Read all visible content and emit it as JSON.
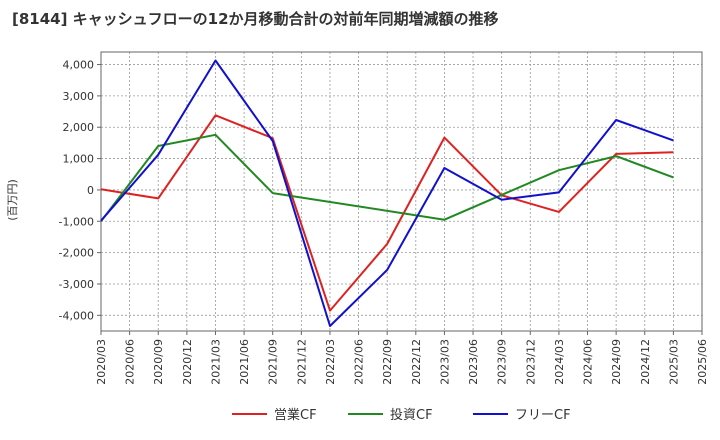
{
  "chart_data": {
    "type": "line",
    "title": "[8144]  キャッシュフローの12か月移動合計の対前年同期増減額の推移",
    "ylabel": "(百万円)",
    "xlabel": "",
    "ylim": [
      -4500,
      4400
    ],
    "yticks": [
      4000,
      3000,
      2000,
      1000,
      0,
      -1000,
      -2000,
      -3000,
      -4000
    ],
    "ytick_labels": [
      "4,000",
      "3,000",
      "2,000",
      "1,000",
      "0",
      "-1,000",
      "-2,000",
      "-3,000",
      "-4,000"
    ],
    "x": [
      "2020/03",
      "2020/06",
      "2020/09",
      "2020/12",
      "2021/03",
      "2021/06",
      "2021/09",
      "2021/12",
      "2022/03",
      "2022/06",
      "2022/09",
      "2022/12",
      "2023/03",
      "2023/06",
      "2023/09",
      "2023/12",
      "2024/03",
      "2024/06",
      "2024/09",
      "2024/12",
      "2025/03",
      "2025/06"
    ],
    "grid": true,
    "legend_position": "bottom",
    "series": [
      {
        "name": "営業CF",
        "color": "#dd2222",
        "points": [
          [
            "2020/03",
            20
          ],
          [
            "2020/09",
            -270
          ],
          [
            "2021/03",
            2380
          ],
          [
            "2021/09",
            1650
          ],
          [
            "2022/03",
            -3850
          ],
          [
            "2022/09",
            -1720
          ],
          [
            "2023/03",
            1670
          ],
          [
            "2023/09",
            -170
          ],
          [
            "2024/03",
            -700
          ],
          [
            "2024/09",
            1150
          ],
          [
            "2025/03",
            1200
          ]
        ]
      },
      {
        "name": "投資CF",
        "color": "#228822",
        "points": [
          [
            "2020/03",
            -1000
          ],
          [
            "2020/09",
            1400
          ],
          [
            "2021/03",
            1760
          ],
          [
            "2021/09",
            -100
          ],
          [
            "2023/03",
            -950
          ],
          [
            "2024/03",
            630
          ],
          [
            "2024/09",
            1080
          ],
          [
            "2025/03",
            400
          ]
        ]
      },
      {
        "name": "フリーCF",
        "color": "#1111cc",
        "points": [
          [
            "2020/03",
            -980
          ],
          [
            "2020/09",
            1120
          ],
          [
            "2021/03",
            4130
          ],
          [
            "2021/09",
            1560
          ],
          [
            "2022/03",
            -4340
          ],
          [
            "2022/09",
            -2550
          ],
          [
            "2023/03",
            700
          ],
          [
            "2023/09",
            -310
          ],
          [
            "2024/03",
            -80
          ],
          [
            "2024/09",
            2230
          ],
          [
            "2025/03",
            1580
          ]
        ]
      }
    ]
  }
}
